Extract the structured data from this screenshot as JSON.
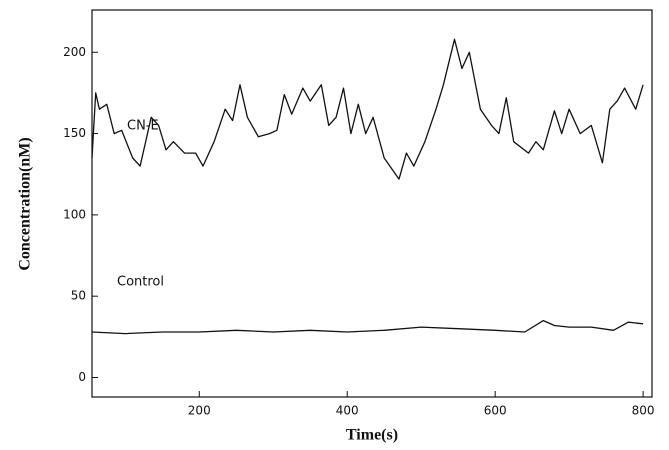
{
  "chart_data": {
    "type": "line",
    "xlabel": "Time(s)",
    "ylabel": "Concentration(nM)",
    "annotations": [
      "CN-E",
      "Control"
    ],
    "xlim": [
      55,
      812
    ],
    "ylim": [
      -12,
      226
    ],
    "xticks": [
      200,
      400,
      600,
      800
    ],
    "yticks": [
      0,
      50,
      100,
      150,
      200
    ],
    "series": [
      {
        "name": "CN-E",
        "color": "#111111",
        "x": [
          55,
          60,
          65,
          75,
          85,
          95,
          110,
          120,
          135,
          145,
          155,
          165,
          180,
          195,
          205,
          220,
          235,
          245,
          255,
          265,
          280,
          295,
          305,
          315,
          325,
          340,
          350,
          365,
          375,
          385,
          395,
          405,
          415,
          425,
          435,
          450,
          470,
          480,
          490,
          505,
          520,
          530,
          545,
          555,
          565,
          580,
          595,
          605,
          615,
          625,
          645,
          655,
          665,
          680,
          690,
          700,
          715,
          730,
          745,
          755,
          765,
          775,
          790,
          800
        ],
        "values": [
          135,
          175,
          165,
          168,
          150,
          152,
          135,
          130,
          160,
          155,
          140,
          145,
          138,
          138,
          130,
          145,
          165,
          158,
          180,
          160,
          148,
          150,
          152,
          174,
          162,
          178,
          170,
          180,
          155,
          160,
          178,
          150,
          168,
          150,
          160,
          135,
          122,
          138,
          130,
          145,
          165,
          180,
          208,
          190,
          200,
          165,
          155,
          150,
          172,
          145,
          138,
          145,
          140,
          164,
          150,
          165,
          150,
          155,
          132,
          165,
          170,
          178,
          165,
          180
        ]
      },
      {
        "name": "Control",
        "color": "#111111",
        "x": [
          55,
          100,
          150,
          200,
          250,
          300,
          350,
          400,
          450,
          500,
          550,
          600,
          640,
          665,
          680,
          700,
          730,
          760,
          780,
          800
        ],
        "values": [
          28,
          27,
          28,
          28,
          29,
          28,
          29,
          28,
          29,
          31,
          30,
          29,
          28,
          35,
          32,
          31,
          31,
          29,
          34,
          33
        ]
      }
    ]
  }
}
